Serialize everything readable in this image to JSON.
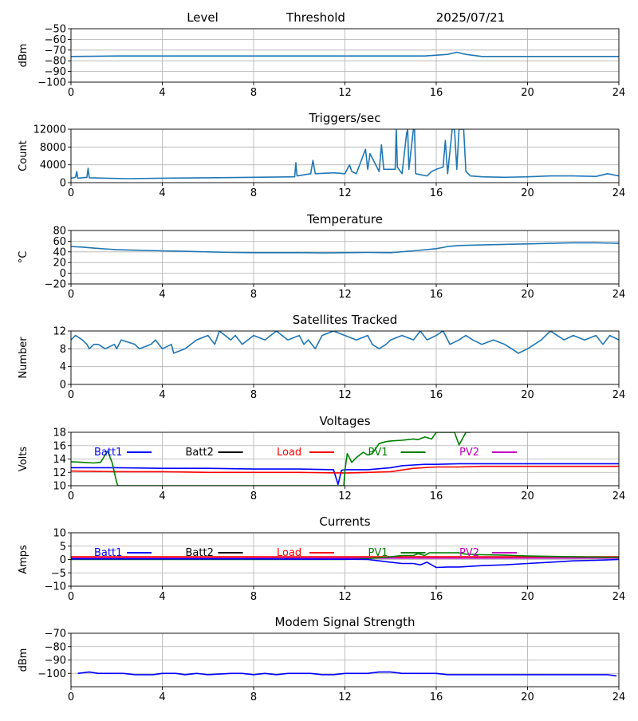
{
  "header": {
    "level": "Level",
    "threshold": "Threshold",
    "date": "2025/07/21"
  },
  "style": {
    "series_color": "#1f77b4",
    "grid_color": "#b0b0b0"
  },
  "chart_data": [
    {
      "id": "level",
      "type": "line",
      "title": "",
      "ylabel": "dBm",
      "xlim": [
        0,
        24
      ],
      "ylim": [
        -100,
        -50
      ],
      "xticks": [
        0,
        4,
        8,
        12,
        16,
        20,
        24
      ],
      "yticks": [
        -100,
        -90,
        -80,
        -70,
        -60,
        -50
      ],
      "grid": true,
      "series": [
        {
          "color": "#1f77b4",
          "x": [
            0,
            2,
            4,
            6,
            8,
            10,
            12,
            14,
            15.5,
            16.5,
            16.9,
            17.3,
            18,
            20,
            22,
            24
          ],
          "y": [
            -76,
            -75.5,
            -75.5,
            -75.5,
            -75.5,
            -75.5,
            -75.5,
            -75.5,
            -75.5,
            -74,
            -72,
            -74,
            -76,
            -76,
            -76,
            -76
          ]
        }
      ]
    },
    {
      "id": "triggers",
      "type": "line",
      "title": "Triggers/sec",
      "ylabel": "Count",
      "xlim": [
        0,
        24
      ],
      "ylim": [
        0,
        12000
      ],
      "xticks": [
        0,
        4,
        8,
        12,
        16,
        20,
        24
      ],
      "yticks": [
        0,
        4000,
        8000,
        12000
      ],
      "grid": true,
      "series": [
        {
          "color": "#1f77b4",
          "x": [
            0,
            0.2,
            0.25,
            0.3,
            0.7,
            0.75,
            0.8,
            1.5,
            2.5,
            4,
            6,
            8,
            9.8,
            9.85,
            9.9,
            10.5,
            10.6,
            10.7,
            11.5,
            12,
            12.2,
            12.3,
            12.5,
            12.9,
            13,
            13.1,
            13.5,
            13.6,
            13.7,
            14.2,
            14.25,
            14.3,
            14.5,
            14.7,
            14.75,
            14.8,
            15,
            15.05,
            15.1,
            15.6,
            15.8,
            16,
            16.3,
            16.4,
            16.5,
            16.7,
            16.8,
            16.9,
            17,
            17.1,
            17.2,
            17.3,
            17.5,
            18,
            19,
            20,
            21,
            22,
            23,
            23.5,
            24
          ],
          "y": [
            1000,
            1200,
            2500,
            1000,
            1200,
            3200,
            1100,
            1000,
            900,
            1000,
            1100,
            1200,
            1300,
            4500,
            1500,
            2000,
            5000,
            2000,
            2200,
            2000,
            4000,
            2500,
            2000,
            7500,
            3000,
            6500,
            2500,
            8500,
            3000,
            3000,
            12000,
            3500,
            2000,
            11000,
            12000,
            3000,
            12000,
            12000,
            2000,
            1500,
            2500,
            3000,
            3500,
            9500,
            2000,
            12000,
            12000,
            3000,
            12000,
            12000,
            12000,
            2500,
            1500,
            1300,
            1200,
            1300,
            1500,
            1500,
            1400,
            2000,
            1500
          ]
        }
      ]
    },
    {
      "id": "temperature",
      "type": "line",
      "title": "Temperature",
      "ylabel": "°C",
      "xlim": [
        0,
        24
      ],
      "ylim": [
        -20,
        80
      ],
      "xticks": [
        0,
        4,
        8,
        12,
        16,
        20,
        24
      ],
      "yticks": [
        -20,
        0,
        20,
        40,
        60,
        80
      ],
      "grid": true,
      "series": [
        {
          "color": "#1f77b4",
          "x": [
            0,
            0.5,
            1,
            2,
            3,
            4,
            5,
            6,
            7,
            8,
            9,
            10,
            11,
            12,
            13,
            14,
            15,
            16,
            16.5,
            17,
            18,
            19,
            20,
            21,
            22,
            23,
            24
          ],
          "y": [
            50,
            49,
            47,
            44,
            43,
            42,
            41,
            40,
            39,
            38.5,
            38.5,
            38.5,
            38,
            38.5,
            39,
            38.5,
            42,
            46,
            50,
            52,
            53,
            54,
            55,
            56,
            57,
            57,
            56
          ]
        }
      ]
    },
    {
      "id": "satellites",
      "type": "line",
      "title": "Satellites Tracked",
      "ylabel": "Number",
      "xlim": [
        0,
        24
      ],
      "ylim": [
        0,
        12
      ],
      "xticks": [
        0,
        4,
        8,
        12,
        16,
        20,
        24
      ],
      "yticks": [
        0,
        4,
        8,
        12
      ],
      "grid": true,
      "series": [
        {
          "color": "#1f77b4",
          "x": [
            0,
            0.2,
            0.5,
            0.7,
            0.8,
            1,
            1.2,
            1.5,
            1.9,
            2,
            2.2,
            2.8,
            3,
            3.5,
            3.7,
            4,
            4.4,
            4.5,
            5,
            5.5,
            6,
            6.3,
            6.5,
            7,
            7.2,
            7.5,
            8,
            8.5,
            9,
            9.5,
            10,
            10.2,
            10.4,
            10.7,
            11,
            11.5,
            12,
            12.5,
            13,
            13.2,
            13.5,
            13.8,
            14,
            14.5,
            15,
            15.3,
            15.6,
            16,
            16.3,
            16.6,
            17,
            17.3,
            17.6,
            18,
            18.5,
            19,
            19.3,
            19.6,
            20,
            20.3,
            20.6,
            21,
            21.3,
            21.6,
            22,
            22.5,
            23,
            23.3,
            23.6,
            24
          ],
          "y": [
            10,
            11,
            10,
            9,
            8,
            9,
            9,
            8,
            9,
            8,
            10,
            9,
            8,
            9,
            10,
            8,
            9,
            7,
            8,
            10,
            11,
            9,
            12,
            10,
            11,
            9,
            11,
            10,
            12,
            10,
            11,
            9,
            10,
            8,
            11,
            12,
            11,
            10,
            11,
            9,
            8,
            9,
            10,
            11,
            10,
            12,
            10,
            11,
            12,
            9,
            10,
            11,
            10,
            9,
            10,
            9,
            8,
            7,
            8,
            9,
            10,
            12,
            11,
            10,
            11,
            10,
            11,
            9,
            11,
            10
          ]
        }
      ]
    },
    {
      "id": "voltages",
      "type": "line",
      "title": "Voltages",
      "ylabel": "Volts",
      "xlim": [
        0,
        24
      ],
      "ylim": [
        10,
        18
      ],
      "xticks": [
        0,
        4,
        8,
        12,
        16,
        20,
        24
      ],
      "yticks": [
        10,
        12,
        14,
        16,
        18
      ],
      "grid": true,
      "legend": [
        {
          "label": "Batt1",
          "color": "#0000ff"
        },
        {
          "label": "Batt2",
          "color": "#000000"
        },
        {
          "label": "Load",
          "color": "#ff0000"
        },
        {
          "label": "PV1",
          "color": "#008000"
        },
        {
          "label": "PV2",
          "color": "#c000c0"
        }
      ],
      "series": [
        {
          "name": "Batt1",
          "color": "#0000ff",
          "x": [
            0,
            2,
            4,
            6,
            8,
            10,
            11.5,
            11.7,
            11.85,
            12,
            13,
            14,
            14.5,
            15,
            15.5,
            16,
            17,
            18,
            20,
            22,
            24
          ],
          "y": [
            12.7,
            12.7,
            12.6,
            12.6,
            12.5,
            12.5,
            12.4,
            10.2,
            12.3,
            12.4,
            12.4,
            12.7,
            13,
            13.1,
            13.2,
            13.2,
            13.3,
            13.3,
            13.3,
            13.3,
            13.3
          ]
        },
        {
          "name": "Load",
          "color": "#ff0000",
          "x": [
            0,
            2,
            4,
            6,
            8,
            10,
            12,
            13,
            14,
            15,
            16,
            17,
            18,
            20,
            22,
            24
          ],
          "y": [
            12.2,
            12.1,
            12.1,
            12.0,
            12.0,
            12.0,
            11.9,
            12.0,
            12.1,
            12.6,
            12.8,
            12.8,
            12.9,
            12.9,
            12.9,
            12.9
          ]
        },
        {
          "name": "PV1",
          "color": "#008000",
          "x": [
            0,
            0.5,
            1,
            1.3,
            1.6,
            1.8,
            2,
            2.05,
            11.95,
            12,
            12.1,
            12.3,
            12.5,
            12.8,
            13.0,
            13.2,
            13.5,
            13.8,
            14,
            14.5,
            15,
            15.2,
            15.5,
            15.8,
            16,
            16.3,
            16.6,
            16.8,
            17.0,
            17.3,
            17.5
          ],
          "y": [
            13.6,
            13.5,
            13.4,
            13.5,
            15.2,
            13.5,
            10.5,
            10,
            10,
            12.3,
            14.8,
            13.5,
            14.2,
            15.0,
            14.6,
            14.8,
            16.3,
            16.6,
            16.7,
            16.8,
            17.0,
            16.9,
            17.3,
            17.0,
            18.0,
            18.0,
            18.0,
            18.0,
            16.1,
            18.0,
            18.0
          ]
        }
      ]
    },
    {
      "id": "currents",
      "type": "line",
      "title": "Currents",
      "ylabel": "Amps",
      "xlim": [
        0,
        24
      ],
      "ylim": [
        -10,
        10
      ],
      "xticks": [
        0,
        4,
        8,
        12,
        16,
        20,
        24
      ],
      "yticks": [
        -10,
        -5,
        0,
        5,
        10
      ],
      "grid": true,
      "legend": [
        {
          "label": "Batt1",
          "color": "#0000ff"
        },
        {
          "label": "Batt2",
          "color": "#000000"
        },
        {
          "label": "Load",
          "color": "#ff0000"
        },
        {
          "label": "PV1",
          "color": "#008000"
        },
        {
          "label": "PV2",
          "color": "#c000c0"
        }
      ],
      "series": [
        {
          "name": "Load",
          "color": "#ff0000",
          "x": [
            0,
            4,
            8,
            12,
            16,
            20,
            24
          ],
          "y": [
            1,
            1,
            1,
            1,
            1,
            1,
            1
          ]
        },
        {
          "name": "PV2",
          "color": "#c000c0",
          "x": [
            0,
            4,
            8,
            12,
            16,
            20,
            24
          ],
          "y": [
            0.5,
            0.5,
            0.5,
            0.5,
            0.5,
            0.5,
            0.5
          ]
        },
        {
          "name": "PV1",
          "color": "#008000",
          "x": [
            0,
            12,
            13,
            14,
            14.5,
            15,
            15.2,
            15.5,
            15.7,
            16,
            17,
            17.3,
            18,
            19,
            20,
            22,
            24
          ],
          "y": [
            0,
            0,
            0.3,
            1,
            1.5,
            1.5,
            2.2,
            1.5,
            2.5,
            2.5,
            2.5,
            2,
            1.8,
            1.6,
            1.3,
            1,
            0.8
          ]
        },
        {
          "name": "Batt1",
          "color": "#0000ff",
          "x": [
            0,
            4,
            8,
            12,
            13,
            13.5,
            14,
            14.5,
            15,
            15.3,
            15.6,
            15.9,
            16,
            16.5,
            17,
            18,
            19,
            20,
            21,
            22,
            23,
            24
          ],
          "y": [
            0.2,
            0.2,
            0.2,
            0.1,
            0,
            -0.5,
            -1,
            -1.5,
            -1.5,
            -2,
            -1,
            -2.5,
            -3,
            -2.8,
            -2.8,
            -2.3,
            -2,
            -1.5,
            -1,
            -0.5,
            -0.3,
            0
          ]
        }
      ]
    },
    {
      "id": "modem",
      "type": "line",
      "title": "Modem Signal Strength",
      "ylabel": "dBm",
      "xlim": [
        0,
        24
      ],
      "ylim": [
        -110,
        -70
      ],
      "xticks": [
        0,
        4,
        8,
        12,
        16,
        20,
        24
      ],
      "yticks": [
        -100,
        -90,
        -80,
        -70
      ],
      "grid": true,
      "series": [
        {
          "color": "#0000ff",
          "x": [
            0.3,
            0.8,
            1.2,
            2.3,
            2.8,
            3.6,
            4,
            4.6,
            5,
            5.5,
            6,
            7,
            7.5,
            8,
            8.5,
            9,
            9.5,
            10,
            10.5,
            11,
            11.5,
            12,
            12.5,
            13,
            13.5,
            14,
            14.5,
            15,
            15.5,
            16,
            16.5,
            17,
            18,
            19,
            20,
            21,
            22,
            23,
            23.5,
            23.9
          ],
          "y": [
            -100,
            -99,
            -100,
            -100,
            -101,
            -101,
            -100,
            -100,
            -101,
            -100,
            -101,
            -100,
            -100,
            -101,
            -100,
            -101,
            -100,
            -100,
            -100,
            -101,
            -101,
            -100,
            -100,
            -100,
            -99,
            -99,
            -100,
            -100,
            -100,
            -100,
            -101,
            -101,
            -101,
            -101,
            -101,
            -101,
            -101,
            -101,
            -101,
            -102
          ]
        }
      ]
    }
  ]
}
